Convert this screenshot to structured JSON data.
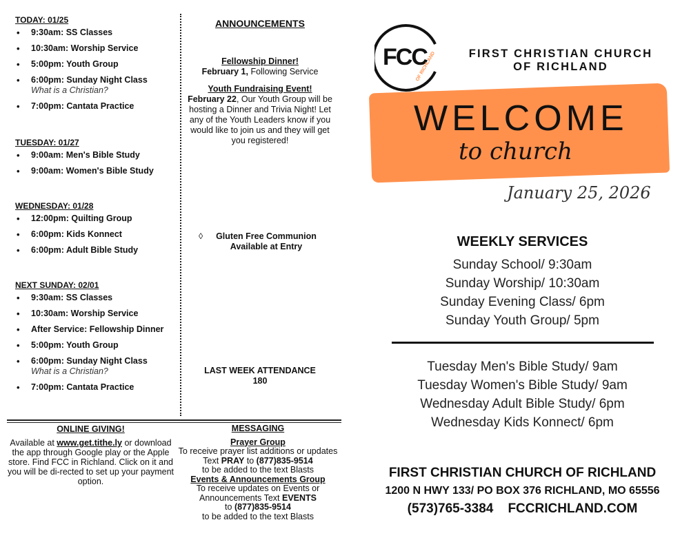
{
  "schedule": [
    {
      "heading": "TODAY: 01/25",
      "items": [
        {
          "text": "9:30am: SS Classes"
        },
        {
          "text": "10:30am:  Worship Service"
        },
        {
          "text": "5:00pm:  Youth Group"
        },
        {
          "text": "6:00pm:  Sunday Night  Class",
          "sub": "What is a Christian?"
        },
        {
          "text": "7:00pm: Cantata Practice"
        }
      ]
    },
    {
      "heading": "TUESDAY: 01/27",
      "items": [
        {
          "text": "9:00am:  Men's Bible Study"
        },
        {
          "text": "9:00am:  Women's Bible Study"
        }
      ]
    },
    {
      "heading": "WEDNESDAY: 01/28",
      "items": [
        {
          "text": "12:00pm: Quilting Group"
        },
        {
          "text": "6:00pm: Kids Konnect"
        },
        {
          "text": "6:00pm: Adult Bible Study"
        }
      ]
    },
    {
      "heading": "NEXT SUNDAY:  02/01",
      "items": [
        {
          "text": "9:30am: SS Classes"
        },
        {
          "text": "10:30am:  Worship Service"
        },
        {
          "text": "After Service: Fellowship Dinner"
        },
        {
          "text": "5:00pm:  Youth Group"
        },
        {
          "text": "6:00pm:  Sunday Night  Class",
          "sub": "What is a Christian?"
        },
        {
          "text": "7:00pm: Cantata Practice"
        }
      ]
    }
  ],
  "announcements": {
    "heading": "ANNOUNCEMENTS",
    "fellowship_title": "Fellowship Dinner!",
    "fellowship_date": "February 1,",
    "fellowship_text": " Following Service",
    "youth_title": "Youth Fundraising Event!",
    "youth_date": "February 22",
    "youth_text": ", Our Youth Group will be hosting a Dinner and Trivia Night! Let any of the Youth Leaders know if you would like to join us and they will get you registered!",
    "gluten_bullet": "◊",
    "gluten_line1": "Gluten Free Communion",
    "gluten_line2": "Available at Entry",
    "attendance_label": "LAST WEEK ATTENDANCE",
    "attendance_value": "180"
  },
  "giving": {
    "heading": "ONLINE GIVING!",
    "pre": "Available at ",
    "link": "www.get.tithe.ly",
    "post": " or download the app through Google play or the Apple store. Find FCC in Richland. Click on it and you will be  di-rected to set up your payment option."
  },
  "messaging": {
    "heading": "MESSAGING",
    "prayer_title": "Prayer Group",
    "prayer_a": "To receive prayer list additions or updates Text ",
    "prayer_kw": "PRAY",
    "prayer_b": " to  ",
    "phone": "(877)835-9514",
    "blast": "to be  added to the text Blasts",
    "events_title": "Events &  Announcements Group",
    "events_a": "To receive updates on Events or Announcements  Text  ",
    "events_kw": "EVENTS",
    "events_b": "to "
  },
  "brand": {
    "logo_text": "FCC",
    "logo_sub": "OF RICHLAND",
    "church_line1": "FIRST CHRISTIAN CHURCH",
    "church_line2": "OF RICHLAND",
    "welcome": "WELCOME",
    "to_church": "to church",
    "date": "January 25, 2026",
    "accent": "#ff914d"
  },
  "services": {
    "heading": "WEEKLY SERVICES",
    "sunday": [
      "Sunday School/ 9:30am",
      "Sunday Worship/ 10:30am",
      "Sunday Evening Class/ 6pm",
      "Sunday Youth Group/ 5pm"
    ],
    "weekday": [
      "Tuesday Men's Bible Study/ 9am",
      "Tuesday Women's Bible Study/ 9am",
      "Wednesday Adult Bible Study/ 6pm",
      "Wednesday Kids Konnect/ 6pm"
    ]
  },
  "footer": {
    "name": "FIRST CHRISTIAN CHURCH OF RICHLAND",
    "address": "1200 N HWY 133/ PO BOX 376  RICHLAND, MO 65556",
    "phone": "(573)765-3384",
    "web": "FCCRICHLAND.COM"
  }
}
